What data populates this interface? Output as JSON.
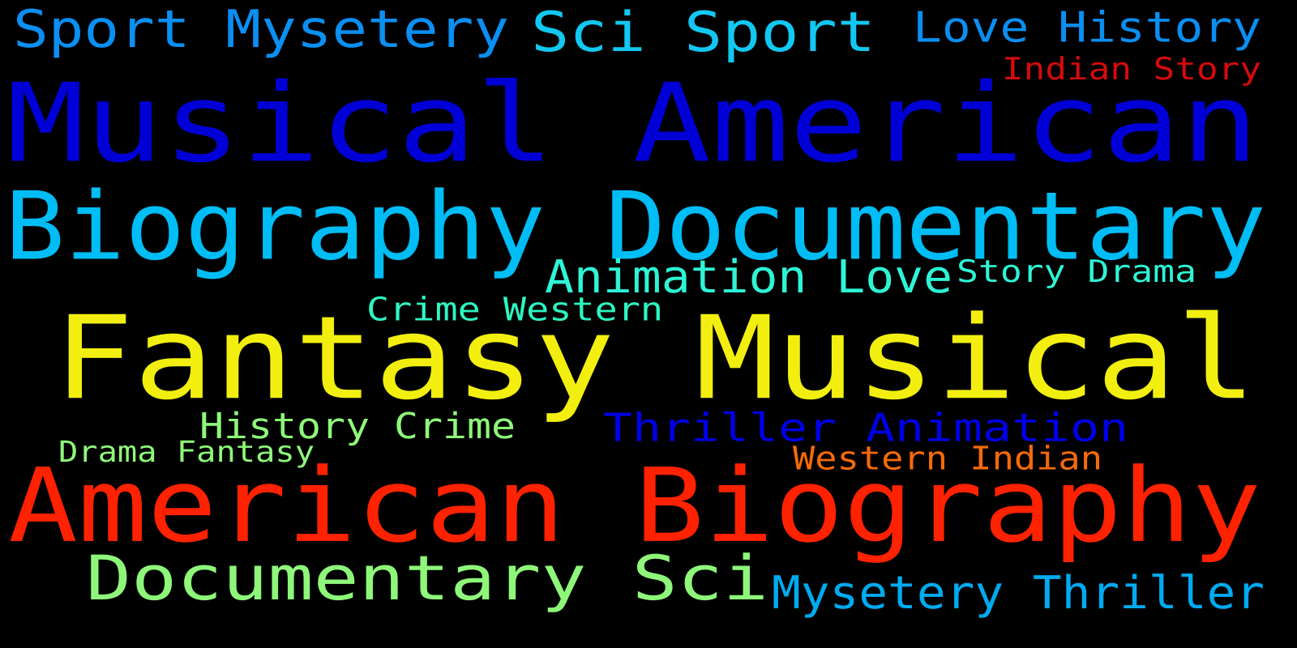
{
  "words": [
    {
      "text": "Sport Mysetery",
      "color": "#0a8ff2"
    },
    {
      "text": "Sci Sport",
      "color": "#12c8f2"
    },
    {
      "text": "Love History",
      "color": "#0a8ff2"
    },
    {
      "text": "Indian Story",
      "color": "#d40b0b"
    },
    {
      "text": "Musical American",
      "color": "#0000d6"
    },
    {
      "text": "Biography Documentary",
      "color": "#00bdf5"
    },
    {
      "text": "Animation Love",
      "color": "#2ef5d6"
    },
    {
      "text": "Story Drama",
      "color": "#2ef5d6"
    },
    {
      "text": "Crime Western",
      "color": "#2ef5c2"
    },
    {
      "text": "Fantasy Musical",
      "color": "#f2ef10"
    },
    {
      "text": "History Crime",
      "color": "#8ef77a"
    },
    {
      "text": "Thriller Animation",
      "color": "#0000e6"
    },
    {
      "text": "Drama Fantasy",
      "color": "#8ef77a"
    },
    {
      "text": "Western Indian",
      "color": "#f56a0a"
    },
    {
      "text": "American Biography",
      "color": "#ff2200"
    },
    {
      "text": "Documentary Sci",
      "color": "#8ef77a"
    },
    {
      "text": "Mysetery Thriller",
      "color": "#00aaf0"
    }
  ]
}
